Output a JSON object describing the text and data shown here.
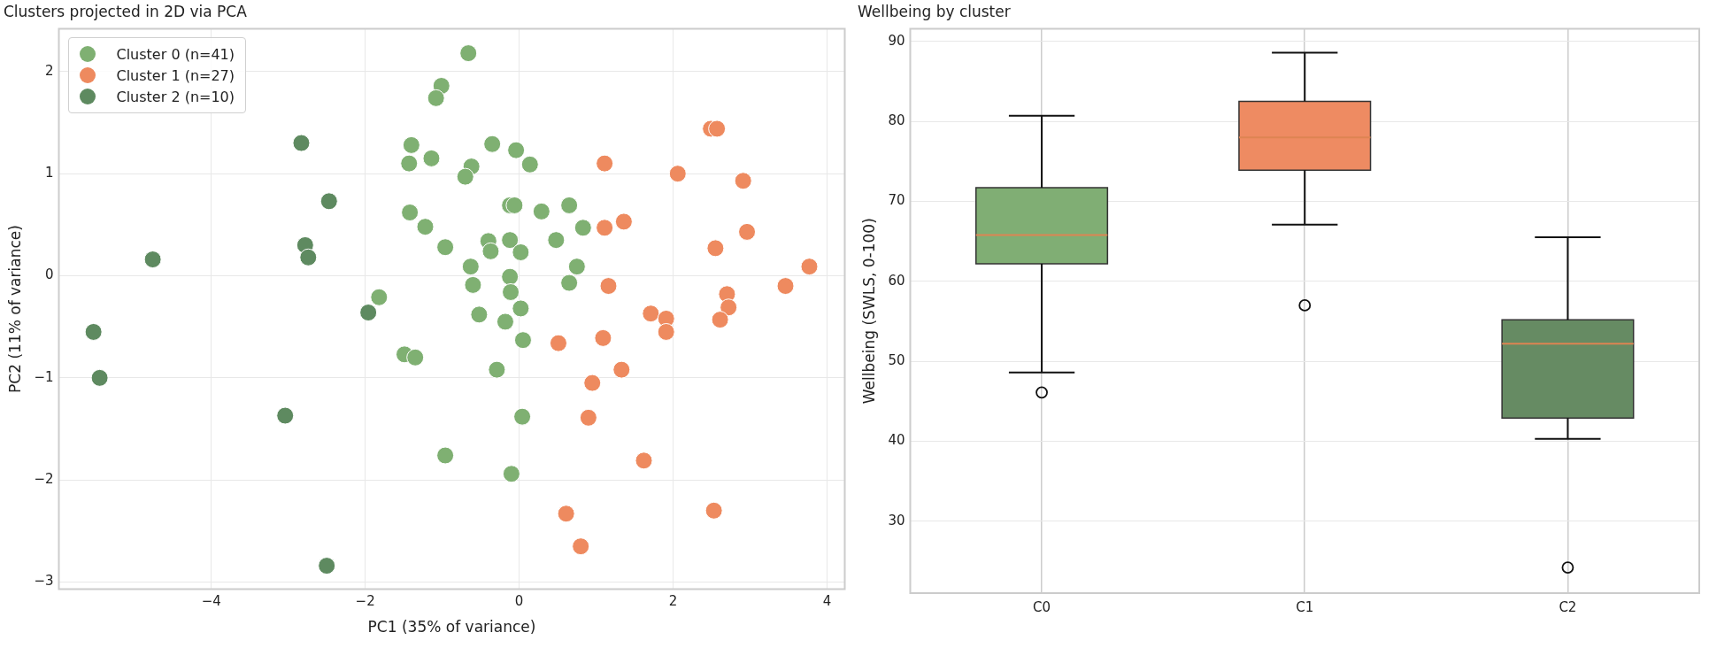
{
  "chart_data": [
    {
      "type": "scatter",
      "title": "Clusters projected in 2D via PCA",
      "xlabel": "PC1 (35% of variance)",
      "ylabel": "PC2 (11% of variance)",
      "xlim": [
        -5.98,
        4.23
      ],
      "ylim": [
        -3.07,
        2.42
      ],
      "xticks": [
        {
          "value": -4,
          "label": "−4"
        },
        {
          "value": -2,
          "label": "−2"
        },
        0,
        2,
        4
      ],
      "yticks": [
        {
          "value": -3,
          "label": "−3"
        },
        {
          "value": -2,
          "label": "−2"
        },
        {
          "value": -1,
          "label": "−1"
        },
        0,
        1,
        2
      ],
      "grid": true,
      "legend": "top left",
      "marker": "circle",
      "series": [
        {
          "name": "Cluster 0 (n=41)",
          "color": "#7fb072",
          "x": [
            -1.01,
            -1.08,
            -1.4,
            -1.43,
            -1.14,
            -1.42,
            -1.22,
            -0.96,
            -1.82,
            -1.49,
            -1.35,
            -0.96,
            -0.66,
            -0.35,
            -0.04,
            0.14,
            -0.62,
            -0.7,
            -0.12,
            -0.06,
            0.29,
            0.65,
            0.83,
            -0.4,
            -0.37,
            -0.12,
            0.02,
            0.48,
            0.75,
            -0.63,
            -0.6,
            -0.12,
            -0.11,
            0.65,
            0.02,
            -0.52,
            -0.18,
            0.05,
            -0.29,
            0.04,
            -0.1
          ],
          "values": [
            1.86,
            1.74,
            1.28,
            1.1,
            1.15,
            0.62,
            0.48,
            0.28,
            -0.21,
            -0.77,
            -0.8,
            -1.76,
            2.18,
            1.29,
            1.23,
            1.09,
            1.07,
            0.97,
            0.69,
            0.69,
            0.63,
            0.69,
            0.47,
            0.34,
            0.24,
            0.35,
            0.23,
            0.35,
            0.09,
            0.09,
            -0.09,
            -0.01,
            -0.16,
            -0.07,
            -0.32,
            -0.38,
            -0.45,
            -0.63,
            -0.92,
            -1.38,
            -1.94
          ]
        },
        {
          "name": "Cluster 1 (n=27)",
          "color": "#ee8a5f",
          "x": [
            2.49,
            2.57,
            1.11,
            2.06,
            2.91,
            1.11,
            1.36,
            2.96,
            2.55,
            3.77,
            3.46,
            1.16,
            2.7,
            2.72,
            2.61,
            1.71,
            1.91,
            1.91,
            0.51,
            1.09,
            1.33,
            0.95,
            0.9,
            1.62,
            2.53,
            0.61,
            0.8
          ],
          "values": [
            1.44,
            1.44,
            1.1,
            1.0,
            0.93,
            0.47,
            0.53,
            0.43,
            0.27,
            0.09,
            -0.1,
            -0.1,
            -0.18,
            -0.31,
            -0.43,
            -0.37,
            -0.42,
            -0.55,
            -0.66,
            -0.61,
            -0.92,
            -1.05,
            -1.39,
            -1.81,
            -2.3,
            -2.33,
            -2.65
          ]
        },
        {
          "name": "Cluster 2 (n=10)",
          "color": "#5e8a60",
          "x": [
            -2.83,
            -2.47,
            -2.78,
            -2.74,
            -4.76,
            -1.96,
            -5.53,
            -5.45,
            -3.04,
            -2.5
          ],
          "values": [
            1.3,
            0.73,
            0.3,
            0.18,
            0.16,
            -0.36,
            -0.55,
            -1.0,
            -1.37,
            -2.84
          ]
        }
      ]
    },
    {
      "type": "box",
      "title": "Wellbeing by cluster",
      "ylabel": "Wellbeing (SWLS, 0-100)",
      "categories": [
        "C0",
        "C1",
        "C2"
      ],
      "colors": [
        "#80ae74",
        "#ee8b62",
        "#668b63"
      ],
      "ylim": [
        21.0,
        91.6
      ],
      "yticks": [
        30,
        40,
        50,
        60,
        70,
        80,
        90
      ],
      "grid": true,
      "boxes": [
        {
          "low": 48.6,
          "q1": 62.2,
          "median": 65.8,
          "q3": 71.7,
          "high": 80.7,
          "outliers": [
            46.1
          ]
        },
        {
          "low": 67.1,
          "q1": 73.9,
          "median": 78.0,
          "q3": 82.5,
          "high": 88.6,
          "outliers": [
            57.0
          ]
        },
        {
          "low": 40.3,
          "q1": 42.9,
          "median": 52.2,
          "q3": 55.2,
          "high": 65.5,
          "outliers": [
            24.2
          ]
        }
      ]
    }
  ]
}
